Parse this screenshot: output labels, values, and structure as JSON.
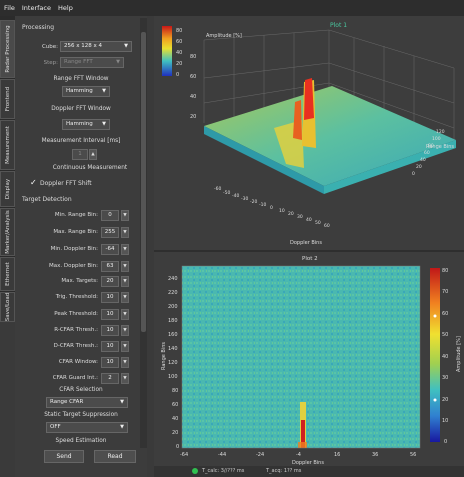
{
  "menu": [
    "File",
    "Interface",
    "Help"
  ],
  "tabs": [
    "Radar Processing",
    "Frontend",
    "Measurement",
    "Display",
    "Marker/Analysis",
    "Ethernet",
    "Save/Load"
  ],
  "processing": {
    "header": "Processing",
    "cube_label": "Cube:",
    "cube_value": "256 x 128 x 4",
    "step_label": "Step:",
    "step_value": "Range FFT",
    "range_window_label": "Range FFT Window",
    "range_window_value": "Hamming",
    "doppler_window_label": "Doppler FFT Window",
    "doppler_window_value": "Hamming",
    "meas_interval_label": "Measurement Interval [ms]",
    "meas_interval_value": "1",
    "continuous_label": "Continuous Measurement",
    "doppler_shift_check": "✓",
    "doppler_shift_label": "Doppler FFT Shift"
  },
  "target_detection": {
    "header": "Target Detection",
    "fields": [
      {
        "label": "Min. Range Bin:",
        "value": "0"
      },
      {
        "label": "Max. Range Bin:",
        "value": "255"
      },
      {
        "label": "Min. Doppler Bin:",
        "value": "-64"
      },
      {
        "label": "Max. Doppler Bin:",
        "value": "63"
      },
      {
        "label": "Max. Targets:",
        "value": "20"
      },
      {
        "label": "Trig. Threshold:",
        "value": "10"
      },
      {
        "label": "Peak Threshold:",
        "value": "10"
      },
      {
        "label": "R-CFAR Thresh.:",
        "value": "10"
      },
      {
        "label": "D-CFAR Thresh.:",
        "value": "10"
      },
      {
        "label": "CFAR Window:",
        "value": "10"
      },
      {
        "label": "CFAR Guard Int.:",
        "value": "2"
      }
    ],
    "cfar_selection_label": "CFAR Selection",
    "cfar_selection_value": "Range CFAR",
    "static_suppression_label": "Static Target Suppression",
    "static_suppression_value": "OFF",
    "speed_estimation_label": "Speed Estimation"
  },
  "buttons": {
    "send": "Send",
    "read": "Read"
  },
  "plot1": {
    "title": "Plot 1",
    "amplitude_label": "Amplitude [%]",
    "range_axis_label": "Range Bins",
    "doppler_axis_label": "Doppler Bins",
    "colorbar_ticks": [
      "80",
      "60",
      "40",
      "20",
      "0"
    ],
    "z_ticks": [
      "80",
      "60",
      "40",
      "20"
    ],
    "range_ticks": [
      "0",
      "20",
      "40",
      "60",
      "80",
      "100",
      "120"
    ],
    "doppler_ticks": [
      "-60",
      "-50",
      "-40",
      "-30",
      "-20",
      "-10",
      "0",
      "10",
      "20",
      "30",
      "40",
      "50",
      "60"
    ],
    "colors": {
      "high": "#e02020",
      "mid": "#e8d020",
      "low": "#40b8b8"
    }
  },
  "plot2": {
    "title": "Plot 2",
    "y_label": "Range Bins",
    "x_label": "Doppler Bins",
    "colorbar_label": "Amplitude [%]",
    "y_ticks": [
      "240",
      "220",
      "200",
      "180",
      "160",
      "140",
      "120",
      "100",
      "80",
      "60",
      "40",
      "20",
      "0"
    ],
    "x_ticks": [
      "-64",
      "-44",
      "-24",
      "-4",
      "16",
      "36",
      "56"
    ],
    "colorbar_ticks": [
      "80",
      "70",
      "60",
      "50",
      "40",
      "30",
      "20",
      "10",
      "0"
    ],
    "colors": {
      "background": "#4ab8b0",
      "target": "#d02020"
    }
  },
  "status": {
    "left": "T_calc: 3//??? ms",
    "right": "T_acq: 1?? ms"
  }
}
